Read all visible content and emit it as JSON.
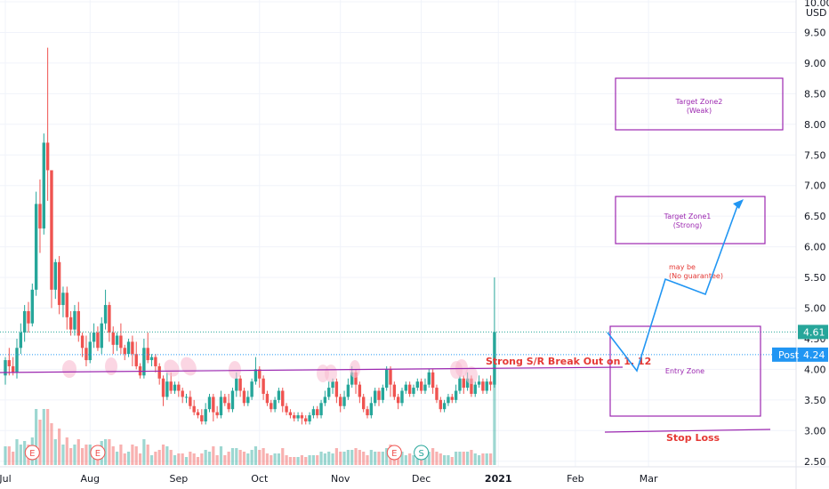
{
  "chart_data": {
    "type": "candlestick",
    "y_ticks": [
      10.0,
      9.5,
      9.0,
      8.5,
      8.0,
      7.5,
      7.0,
      6.5,
      6.0,
      5.5,
      5.0,
      4.5,
      4.0,
      3.5,
      3.0,
      2.5
    ],
    "y_tick_labels": [
      "10.00",
      "9.50",
      "9.00",
      "8.50",
      "8.00",
      "7.50",
      "7.00",
      "6.50",
      "6.00",
      "5.50",
      "5.00",
      "4.50",
      "4.00",
      "3.50",
      "3.00",
      "2.50"
    ],
    "x_labels": [
      {
        "label": "Jul",
        "bar": 0,
        "bold": false
      },
      {
        "label": "Aug",
        "bar": 22,
        "bold": false
      },
      {
        "label": "Sep",
        "bar": 45,
        "bold": false
      },
      {
        "label": "Oct",
        "bar": 66,
        "bold": false
      },
      {
        "label": "Nov",
        "bar": 87,
        "bold": false
      },
      {
        "label": "Dec",
        "bar": 108,
        "bold": false
      },
      {
        "label": "2021",
        "bar": 128,
        "bold": true
      },
      {
        "label": "Feb",
        "bar": 148,
        "bold": false
      },
      {
        "label": "Mar",
        "bar": 167,
        "bold": false
      }
    ],
    "currency": "USD",
    "last_price": {
      "value": 4.61,
      "label": "4.61",
      "color": "#26a69a"
    },
    "post_price": {
      "value": 4.24,
      "label": "4.24",
      "tag": "Post",
      "color": "#2196f3"
    },
    "candles": [
      [
        3.9,
        4.15,
        4.2,
        3.75
      ],
      [
        4.15,
        4.05,
        4.35,
        3.9
      ],
      [
        4.05,
        3.95,
        4.2,
        3.9
      ],
      [
        3.95,
        4.35,
        4.5,
        3.85
      ],
      [
        4.35,
        4.6,
        4.75,
        4.25
      ],
      [
        4.6,
        4.95,
        5.05,
        4.45
      ],
      [
        4.95,
        4.75,
        5.1,
        4.6
      ],
      [
        4.75,
        5.3,
        5.4,
        4.7
      ],
      [
        5.3,
        6.7,
        6.9,
        5.2
      ],
      [
        6.7,
        6.3,
        7.1,
        5.9
      ],
      [
        6.3,
        7.7,
        7.85,
        6.2
      ],
      [
        7.7,
        7.25,
        9.25,
        6.75
      ],
      [
        7.25,
        5.3,
        6.1,
        5.0
      ],
      [
        5.3,
        5.75,
        5.8,
        5.15
      ],
      [
        5.75,
        5.05,
        5.85,
        4.9
      ],
      [
        5.05,
        5.25,
        5.35,
        4.85
      ],
      [
        5.25,
        4.85,
        5.35,
        4.65
      ],
      [
        4.85,
        4.65,
        4.95,
        4.55
      ],
      [
        4.65,
        4.95,
        5.05,
        4.55
      ],
      [
        4.95,
        4.55,
        5.1,
        4.45
      ],
      [
        4.55,
        4.35,
        4.6,
        4.2
      ],
      [
        4.35,
        4.15,
        4.55,
        4.05
      ],
      [
        4.15,
        4.45,
        4.6,
        4.1
      ],
      [
        4.45,
        4.6,
        4.75,
        4.35
      ],
      [
        4.6,
        4.35,
        4.7,
        4.3
      ],
      [
        4.35,
        4.75,
        4.85,
        4.25
      ],
      [
        4.75,
        5.05,
        5.3,
        4.65
      ],
      [
        5.05,
        4.6,
        5.1,
        4.45
      ],
      [
        4.6,
        4.4,
        4.7,
        4.25
      ],
      [
        4.4,
        4.55,
        4.6,
        4.3
      ],
      [
        4.55,
        4.35,
        4.75,
        4.25
      ],
      [
        4.35,
        4.25,
        4.4,
        4.15
      ],
      [
        4.25,
        4.45,
        4.5,
        4.2
      ],
      [
        4.45,
        4.25,
        4.55,
        4.05
      ],
      [
        4.25,
        4.05,
        4.45,
        4.0
      ],
      [
        4.05,
        3.9,
        4.1,
        3.85
      ],
      [
        3.9,
        4.35,
        4.5,
        3.85
      ],
      [
        4.35,
        4.15,
        4.6,
        4.1
      ],
      [
        4.15,
        4.2,
        4.25,
        4.05
      ],
      [
        4.2,
        4.05,
        4.25,
        3.95
      ],
      [
        4.05,
        3.85,
        4.1,
        3.75
      ],
      [
        3.85,
        3.55,
        3.9,
        3.4
      ],
      [
        3.55,
        3.8,
        3.95,
        3.5
      ],
      [
        3.8,
        3.65,
        3.95,
        3.6
      ],
      [
        3.65,
        3.75,
        3.8,
        3.6
      ],
      [
        3.75,
        3.65,
        3.8,
        3.55
      ],
      [
        3.65,
        3.55,
        3.7,
        3.45
      ],
      [
        3.55,
        3.55,
        3.6,
        3.45
      ],
      [
        3.55,
        3.4,
        3.65,
        3.35
      ],
      [
        3.4,
        3.3,
        3.5,
        3.25
      ],
      [
        3.3,
        3.25,
        3.35,
        3.2
      ],
      [
        3.25,
        3.15,
        3.35,
        3.1
      ],
      [
        3.15,
        3.35,
        3.45,
        3.1
      ],
      [
        3.35,
        3.55,
        3.6,
        3.3
      ],
      [
        3.55,
        3.3,
        3.6,
        3.15
      ],
      [
        3.3,
        3.25,
        3.4,
        3.2
      ],
      [
        3.25,
        3.55,
        3.65,
        3.2
      ],
      [
        3.55,
        3.45,
        3.6,
        3.4
      ],
      [
        3.45,
        3.35,
        3.6,
        3.3
      ],
      [
        3.35,
        3.65,
        3.7,
        3.3
      ],
      [
        3.65,
        3.85,
        3.95,
        3.55
      ],
      [
        3.85,
        3.65,
        3.9,
        3.55
      ],
      [
        3.65,
        3.45,
        3.7,
        3.4
      ],
      [
        3.45,
        3.55,
        3.65,
        3.4
      ],
      [
        3.55,
        3.8,
        3.85,
        3.5
      ],
      [
        3.8,
        4.0,
        4.2,
        3.75
      ],
      [
        4.0,
        3.85,
        4.05,
        3.7
      ],
      [
        3.85,
        3.6,
        3.9,
        3.5
      ],
      [
        3.6,
        3.45,
        3.65,
        3.4
      ],
      [
        3.45,
        3.35,
        3.5,
        3.3
      ],
      [
        3.35,
        3.5,
        3.55,
        3.3
      ],
      [
        3.5,
        3.65,
        3.7,
        3.45
      ],
      [
        3.65,
        3.4,
        3.7,
        3.3
      ],
      [
        3.4,
        3.3,
        3.45,
        3.25
      ],
      [
        3.3,
        3.25,
        3.35,
        3.2
      ],
      [
        3.25,
        3.2,
        3.3,
        3.15
      ],
      [
        3.2,
        3.25,
        3.3,
        3.15
      ],
      [
        3.25,
        3.2,
        3.3,
        3.1
      ],
      [
        3.2,
        3.15,
        3.25,
        3.1
      ],
      [
        3.15,
        3.25,
        3.3,
        3.1
      ],
      [
        3.25,
        3.35,
        3.4,
        3.2
      ],
      [
        3.35,
        3.25,
        3.4,
        3.2
      ],
      [
        3.25,
        3.45,
        3.5,
        3.2
      ],
      [
        3.45,
        3.55,
        3.65,
        3.4
      ],
      [
        3.55,
        3.7,
        3.8,
        3.5
      ],
      [
        3.7,
        3.8,
        3.85,
        3.6
      ],
      [
        3.8,
        3.55,
        3.85,
        3.45
      ],
      [
        3.55,
        3.4,
        3.6,
        3.3
      ],
      [
        3.4,
        3.55,
        3.65,
        3.35
      ],
      [
        3.55,
        3.75,
        3.85,
        3.5
      ],
      [
        3.75,
        3.95,
        4.05,
        3.7
      ],
      [
        3.95,
        3.75,
        4.0,
        3.6
      ],
      [
        3.75,
        3.55,
        3.8,
        3.45
      ],
      [
        3.55,
        3.35,
        3.6,
        3.3
      ],
      [
        3.35,
        3.25,
        3.4,
        3.2
      ],
      [
        3.25,
        3.45,
        3.55,
        3.2
      ],
      [
        3.45,
        3.65,
        3.7,
        3.4
      ],
      [
        3.65,
        3.5,
        3.7,
        3.4
      ],
      [
        3.5,
        3.7,
        3.75,
        3.45
      ],
      [
        3.7,
        4.0,
        4.05,
        3.65
      ],
      [
        4.0,
        3.75,
        4.05,
        3.55
      ],
      [
        3.75,
        3.55,
        3.8,
        3.5
      ],
      [
        3.55,
        3.45,
        3.6,
        3.35
      ],
      [
        3.45,
        3.65,
        3.7,
        3.4
      ],
      [
        3.65,
        3.75,
        3.8,
        3.6
      ],
      [
        3.75,
        3.6,
        3.8,
        3.55
      ],
      [
        3.6,
        3.7,
        3.75,
        3.55
      ],
      [
        3.7,
        3.8,
        3.85,
        3.65
      ],
      [
        3.8,
        3.65,
        3.85,
        3.6
      ],
      [
        3.65,
        3.75,
        3.85,
        3.6
      ],
      [
        3.75,
        3.95,
        4.0,
        3.7
      ],
      [
        3.95,
        3.7,
        4.0,
        3.6
      ],
      [
        3.7,
        3.5,
        3.75,
        3.45
      ],
      [
        3.5,
        3.35,
        3.55,
        3.3
      ],
      [
        3.35,
        3.45,
        3.5,
        3.3
      ],
      [
        3.45,
        3.55,
        3.6,
        3.4
      ],
      [
        3.55,
        3.5,
        3.6,
        3.45
      ],
      [
        3.5,
        3.65,
        3.75,
        3.45
      ],
      [
        3.65,
        3.85,
        3.9,
        3.6
      ],
      [
        3.85,
        3.7,
        3.9,
        3.6
      ],
      [
        3.7,
        3.85,
        3.95,
        3.65
      ],
      [
        3.85,
        3.6,
        3.9,
        3.55
      ],
      [
        3.6,
        3.75,
        3.8,
        3.55
      ],
      [
        3.75,
        3.8,
        3.9,
        3.7
      ],
      [
        3.8,
        3.65,
        3.85,
        3.6
      ],
      [
        3.65,
        3.8,
        3.85,
        3.6
      ],
      [
        3.8,
        3.75,
        3.9,
        3.65
      ],
      [
        3.75,
        4.61,
        5.5,
        3.7
      ]
    ],
    "volume_markers": [
      {
        "label": "E",
        "bar": 7,
        "color": "#ef5350"
      },
      {
        "label": "E",
        "bar": 24,
        "color": "#ef5350"
      },
      {
        "label": "E",
        "bar": 101,
        "color": "#ef5350"
      },
      {
        "label": "S",
        "bar": 108,
        "color": "#26a69a"
      }
    ],
    "annotations": {
      "breakout_text": "Strong S/R Break Out on 1. 12",
      "entry_zone": "Entry Zone",
      "target1_line1": "Target Zone1",
      "target1_line2": "(Strong)",
      "target2_line1": "Target Zone2",
      "target2_line2": "(Weak)",
      "maybe_line1": "may be",
      "maybe_line2": "(No guarantee)",
      "stop_loss": "Stop Loss"
    },
    "colors": {
      "up": "#26a69a",
      "down": "#ef5350",
      "zone": "#9c27b0",
      "arrow": "#2196f3"
    }
  }
}
